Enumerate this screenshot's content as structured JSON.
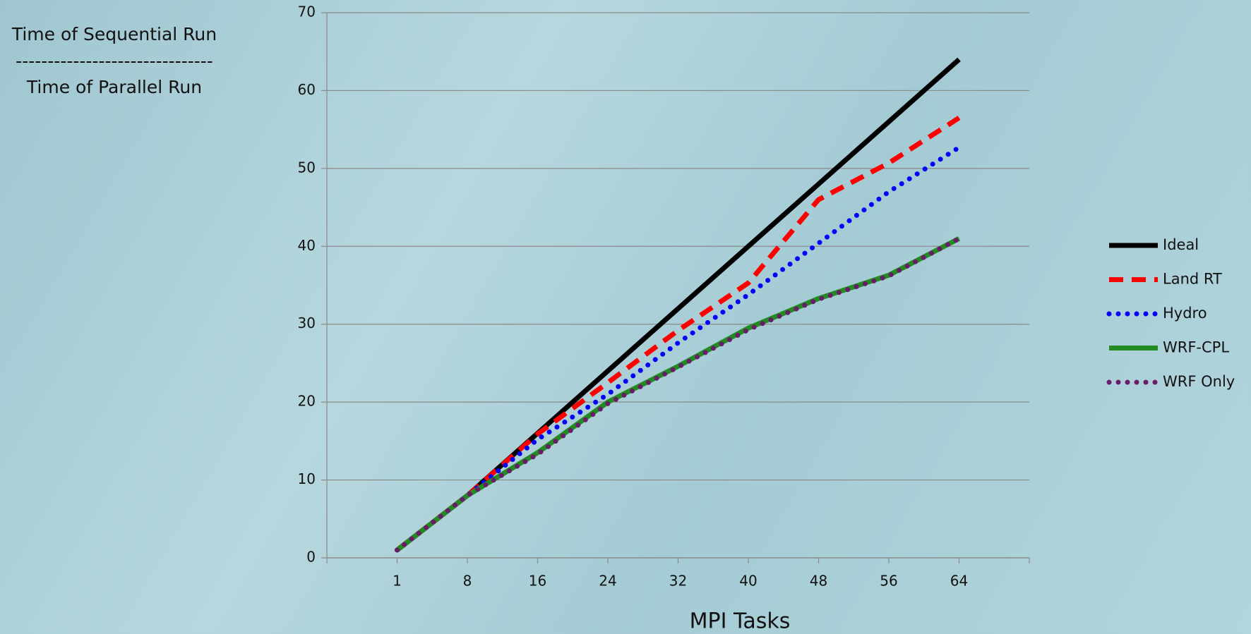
{
  "chart_data": {
    "type": "line",
    "annotations": [
      "Time of Sequential Run",
      "-------------------------------",
      "Time of Parallel Run"
    ],
    "x_label": "MPI Tasks",
    "categories": [
      "1",
      "8",
      "16",
      "24",
      "32",
      "40",
      "48",
      "56",
      "64"
    ],
    "series": [
      {
        "name": "Ideal",
        "color": "#000000",
        "style": "solid",
        "values": [
          1,
          8,
          16,
          24,
          32,
          40,
          48,
          56,
          64
        ]
      },
      {
        "name": "Land RT",
        "color": "#ff0000",
        "style": "dashed",
        "values": [
          1,
          8,
          15.9,
          22.5,
          29.2,
          35.3,
          46,
          50.7,
          56.5
        ]
      },
      {
        "name": "Hydro",
        "color": "#0000ff",
        "style": "dotted",
        "values": [
          1,
          8,
          15.2,
          21,
          27.6,
          33.8,
          40.4,
          47,
          52.7
        ]
      },
      {
        "name": "WRF-CPL",
        "color": "#228b22",
        "style": "solid",
        "values": [
          1,
          8,
          13.5,
          20,
          24.6,
          29.5,
          33.3,
          36.3,
          41
        ]
      },
      {
        "name": "WRF Only",
        "color": "#6a1b6a",
        "style": "dotted",
        "values": [
          1,
          8,
          13.3,
          19.8,
          24.5,
          29.3,
          33.2,
          36.2,
          41
        ]
      }
    ],
    "ylim": [
      0,
      70
    ],
    "yticks": [
      0,
      10,
      20,
      30,
      40,
      50,
      60,
      70
    ],
    "grid": true
  }
}
